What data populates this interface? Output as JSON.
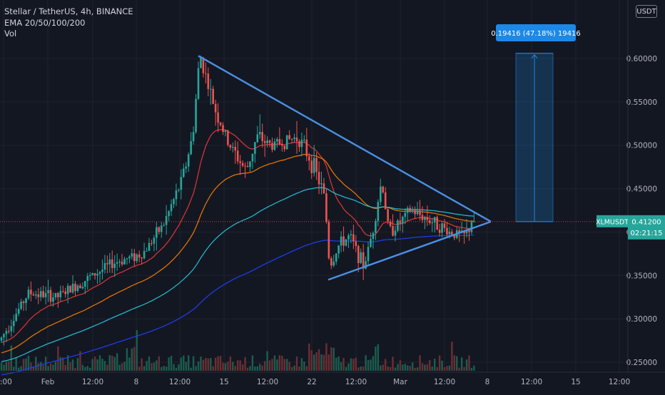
{
  "legend": {
    "line1": "Stellar / TetherUS, 4h, BINANCE",
    "line2": "EMA 20/50/100/200",
    "line3": "Vol"
  },
  "currency_badge": "USDT",
  "price_tag": {
    "symbol": "XLMUSDT",
    "price": "0.41200",
    "countdown": "02:21:15"
  },
  "measure_label": "0.19416 (47.18%) 19416",
  "colors": {
    "background": "#131722",
    "up": "#26a69a",
    "down": "#ef5350",
    "ema20": "#e53935",
    "ema50": "#f57c00",
    "ema100": "#26c6da",
    "ema200": "#1e40ff",
    "trendline": "#4a90e2",
    "measure": "#1e88e5"
  },
  "chart_data": {
    "type": "candlestick",
    "x_ticks": [
      "2:00",
      "Feb",
      "12:00",
      "8",
      "12:00",
      "15",
      "12:00",
      "22",
      "12:00",
      "Mar",
      "12:00",
      "8",
      "12:00",
      "15",
      "12:00"
    ],
    "y_ticks": [
      "0.60000",
      "0.55000",
      "0.50000",
      "0.45000",
      "0.40000",
      "0.35000",
      "0.30000",
      "0.25000"
    ],
    "ylim": [
      0.245,
      0.625
    ],
    "last_price": 0.412,
    "price_path_anchors": [
      [
        0,
        0.275
      ],
      [
        40,
        0.33
      ],
      [
        80,
        0.325
      ],
      [
        120,
        0.345
      ],
      [
        160,
        0.365
      ],
      [
        200,
        0.375
      ],
      [
        230,
        0.41
      ],
      [
        255,
        0.46
      ],
      [
        270,
        0.51
      ],
      [
        280,
        0.605
      ],
      [
        300,
        0.545
      ],
      [
        318,
        0.505
      ],
      [
        345,
        0.47
      ],
      [
        360,
        0.51
      ],
      [
        380,
        0.5
      ],
      [
        400,
        0.505
      ],
      [
        418,
        0.51
      ],
      [
        440,
        0.475
      ],
      [
        455,
        0.44
      ],
      [
        462,
        0.36
      ],
      [
        475,
        0.385
      ],
      [
        490,
        0.395
      ],
      [
        510,
        0.36
      ],
      [
        522,
        0.4
      ],
      [
        535,
        0.46
      ],
      [
        545,
        0.4
      ],
      [
        560,
        0.41
      ],
      [
        575,
        0.425
      ],
      [
        600,
        0.415
      ],
      [
        630,
        0.4
      ],
      [
        650,
        0.395
      ],
      [
        665,
        0.412
      ]
    ],
    "symmetric_triangle": {
      "upper": [
        [
          0.603,
          "Feb 11 12:00"
        ],
        [
          0.412,
          "Mar 7 12:00"
        ]
      ],
      "lower": [
        [
          0.345,
          "Feb 23"
        ],
        [
          0.412,
          "Mar 7 12:00"
        ]
      ]
    },
    "projection": {
      "from": 0.412,
      "to": 0.606,
      "change": 0.19416,
      "percent": 47.18
    }
  }
}
